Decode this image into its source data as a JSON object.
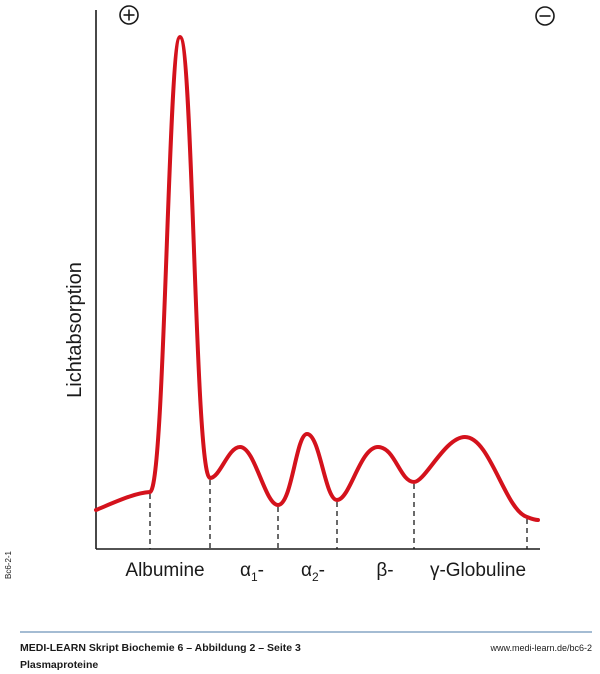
{
  "diagram": {
    "y_axis_label": "Lichtabsorption",
    "fractions": [
      {
        "base": "Albumine"
      },
      {
        "base": "α",
        "sub": "1",
        "suffix": "-"
      },
      {
        "base": "α",
        "sub": "2",
        "suffix": "-"
      },
      {
        "base": "β-"
      },
      {
        "base": "γ-Globuline"
      }
    ]
  },
  "side_code": "Bc6-2-1",
  "footer": {
    "title": "MEDI-LEARN Skript Biochemie 6 – Abbildung 2 – Seite 3",
    "subtitle": "Plasmaproteine",
    "url": "www.medi-learn.de/bc6-2"
  }
}
